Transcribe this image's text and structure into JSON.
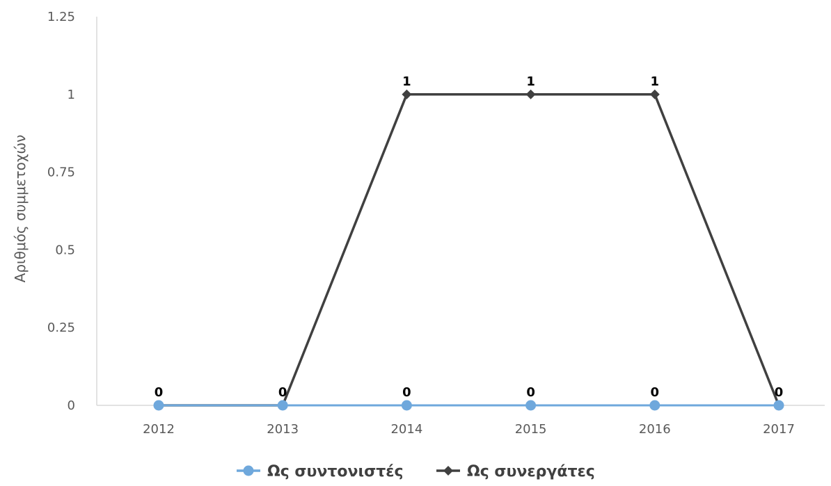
{
  "chart_data": {
    "type": "line",
    "categories": [
      "2012",
      "2013",
      "2014",
      "2015",
      "2016",
      "2017"
    ],
    "series": [
      {
        "name": "Ως συντονιστές",
        "values": [
          0,
          0,
          0,
          0,
          0,
          0
        ],
        "color": "#6fa8dc",
        "marker": "circle"
      },
      {
        "name": "Ως συνεργάτες",
        "values": [
          0,
          0,
          1,
          1,
          1,
          0
        ],
        "color": "#404040",
        "marker": "diamond"
      }
    ],
    "yticks": [
      "0",
      "0.25",
      "0.5",
      "0.75",
      "1",
      "1.25"
    ],
    "ylim": [
      0,
      1.25
    ],
    "xlabel": "",
    "ylabel": "Αριθμός συμμετοχών",
    "title": "",
    "data_labels": {
      "Ως συντονιστές": [
        "0",
        "0",
        "0",
        "0",
        "0",
        "0"
      ],
      "Ως συνεργάτες": [
        "",
        "",
        "1",
        "1",
        "1",
        ""
      ]
    },
    "grid": false,
    "legend_position": "bottom"
  }
}
